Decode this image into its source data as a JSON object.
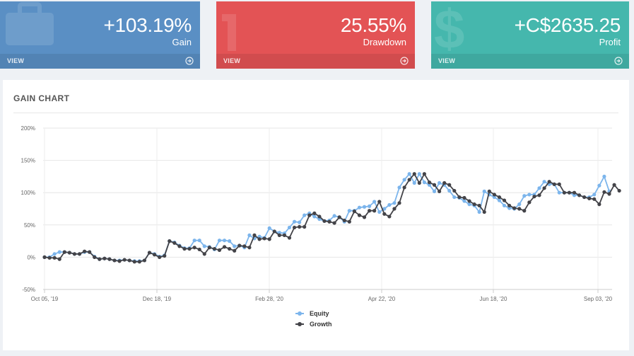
{
  "cards": [
    {
      "value": "+103.19%",
      "label": "Gain",
      "view": "VIEW",
      "icon": "briefcase-icon",
      "color": "#5a8fc4"
    },
    {
      "value": "25.55%",
      "label": "Drawdown",
      "view": "VIEW",
      "icon": "down-arrow-icon",
      "color": "#e35355"
    },
    {
      "value": "+C$2635.25",
      "label": "Profit",
      "view": "VIEW",
      "icon": "dollar-icon",
      "color": "#45b7ad"
    }
  ],
  "panel": {
    "title": "GAIN CHART"
  },
  "chart_data": {
    "type": "line",
    "title": "",
    "xlabel": "",
    "ylabel": "",
    "ylim": [
      -50,
      200
    ],
    "yticks": [
      -50,
      0,
      50,
      100,
      150,
      200
    ],
    "ytick_labels": [
      "-50%",
      "0%",
      "50%",
      "100%",
      "150%",
      "200%"
    ],
    "xtick_labels": [
      "Oct 05, '19",
      "Dec 18, '19",
      "Feb 28, '20",
      "Apr 22, '20",
      "Jun 18, '20",
      "Sep 03, '20"
    ],
    "grid": true,
    "legend": "bottom-center",
    "series": [
      {
        "name": "Equity",
        "color": "#7cb5ec",
        "values": [
          0,
          0,
          5,
          8,
          8,
          7,
          5,
          5,
          8,
          8,
          1,
          -3,
          -2,
          -3,
          -5,
          -5,
          -4,
          -5,
          -6,
          -6,
          -5,
          7,
          5,
          1,
          3,
          25,
          23,
          18,
          14,
          14,
          26,
          26,
          17,
          16,
          12,
          26,
          26,
          25,
          17,
          18,
          15,
          34,
          29,
          32,
          30,
          45,
          40,
          38,
          37,
          46,
          55,
          54,
          65,
          68,
          63,
          59,
          56,
          57,
          64,
          62,
          55,
          72,
          72,
          77,
          78,
          79,
          86,
          70,
          75,
          81,
          84,
          108,
          120,
          129,
          115,
          129,
          116,
          112,
          102,
          115,
          112,
          103,
          93,
          92,
          87,
          82,
          80,
          70,
          102,
          97,
          93,
          88,
          80,
          76,
          75,
          82,
          95,
          97,
          97,
          107,
          117,
          113,
          113,
          100,
          100,
          100,
          96,
          96,
          93,
          93,
          97,
          111,
          125,
          102
        ],
        "values_label": "Equity"
      },
      {
        "name": "Growth",
        "color": "#434348",
        "values": [
          0,
          -1,
          -1,
          -3,
          8,
          7,
          5,
          5,
          9,
          8,
          0,
          -3,
          -2,
          -3,
          -5,
          -6,
          -4,
          -5,
          -7,
          -7,
          -5,
          7,
          4,
          0,
          2,
          25,
          22,
          17,
          13,
          13,
          15,
          12,
          5,
          15,
          13,
          11,
          16,
          13,
          10,
          18,
          17,
          15,
          34,
          28,
          29,
          28,
          40,
          34,
          34,
          30,
          46,
          47,
          47,
          65,
          68,
          63,
          56,
          55,
          53,
          62,
          57,
          55,
          71,
          65,
          62,
          72,
          72,
          86,
          67,
          63,
          75,
          84,
          108,
          120,
          129,
          115,
          129,
          116,
          112,
          102,
          115,
          112,
          103,
          93,
          92,
          87,
          82,
          80,
          70,
          102,
          97,
          93,
          88,
          80,
          76,
          75,
          72,
          85,
          94,
          96,
          107,
          117,
          113,
          113,
          100,
          100,
          100,
          96,
          93,
          91,
          90,
          82,
          101,
          98,
          112,
          103
        ]
      }
    ]
  }
}
